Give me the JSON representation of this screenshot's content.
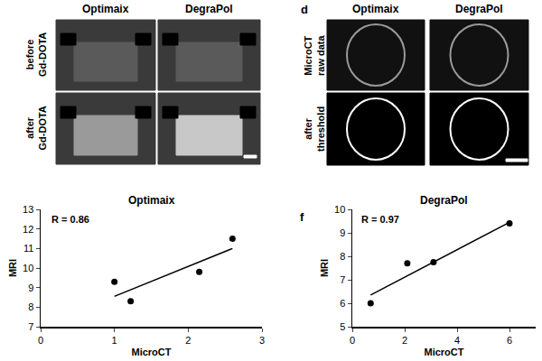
{
  "panels": {
    "mri": {
      "columns": [
        "Optimaix",
        "DegraPol"
      ],
      "rows": [
        "before\nGd-DOTA",
        "after\nGd-DOTA"
      ]
    },
    "microct": {
      "label": "d",
      "columns": [
        "Optimaix",
        "DegraPol"
      ],
      "rows": [
        "MicroCT\nraw data",
        "after\nthreshold"
      ]
    }
  },
  "chart_data": [
    {
      "type": "scatter",
      "title": "Optimaix",
      "x_label": "MicroCT",
      "y_label": "MRI",
      "annotations": [
        "R = 0.86"
      ],
      "series": [
        {
          "type": "scatter",
          "marker": "circle",
          "color": "#000000",
          "x": [
            1.0,
            1.22,
            2.15,
            2.6
          ],
          "values": [
            9.3,
            8.3,
            9.8,
            11.5
          ]
        },
        {
          "type": "line",
          "line_style": "solid",
          "color": "#000000",
          "x": [
            1.0,
            2.6
          ],
          "values": [
            8.55,
            11.0
          ]
        }
      ],
      "xlim": [
        0,
        3
      ],
      "xticks": [
        0,
        1,
        2,
        3
      ],
      "ylim": [
        7,
        13
      ],
      "yticks": [
        7,
        8,
        9,
        10,
        11,
        12,
        13
      ],
      "grid": false
    },
    {
      "type": "scatter",
      "label": "f",
      "title": "DegraPol",
      "x_label": "MicroCT",
      "y_label": "MRI",
      "annotations": [
        "R = 0.97"
      ],
      "series": [
        {
          "type": "scatter",
          "marker": "circle",
          "color": "#000000",
          "x": [
            0.7,
            2.1,
            3.1,
            6.0
          ],
          "values": [
            6.0,
            7.7,
            7.75,
            9.4
          ]
        },
        {
          "type": "line",
          "line_style": "solid",
          "color": "#000000",
          "x": [
            0.7,
            6.0
          ],
          "values": [
            6.35,
            9.45
          ]
        }
      ],
      "xlim": [
        0,
        7
      ],
      "xticks": [
        0,
        2,
        4,
        6
      ],
      "ylim": [
        5,
        10
      ],
      "yticks": [
        5,
        6,
        7,
        8,
        9,
        10
      ],
      "grid": false
    }
  ]
}
